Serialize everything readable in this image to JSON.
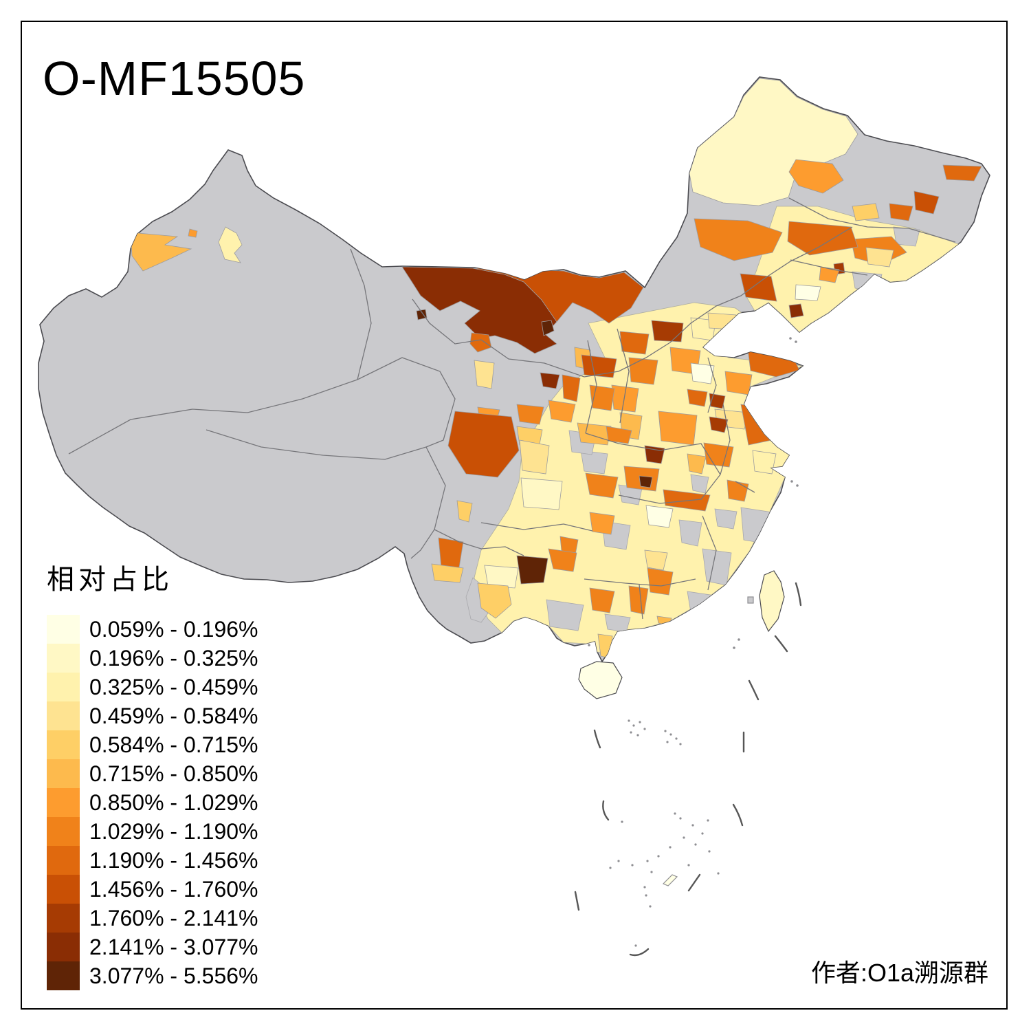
{
  "title": "O-MF15505",
  "attribution": "作者:O1a溯源群",
  "legend": {
    "title": "相对占比",
    "items": [
      {
        "label": "0.059% - 0.196%",
        "color": "#FFFFE5"
      },
      {
        "label": "0.196% - 0.325%",
        "color": "#FFF8C5"
      },
      {
        "label": "0.325% - 0.459%",
        "color": "#FFF2AD"
      },
      {
        "label": "0.459% - 0.584%",
        "color": "#FEE391"
      },
      {
        "label": "0.584% - 0.715%",
        "color": "#FECF66"
      },
      {
        "label": "0.715% - 0.850%",
        "color": "#FDBA4D"
      },
      {
        "label": "0.850% - 1.029%",
        "color": "#FD9C2F"
      },
      {
        "label": "1.029% - 1.190%",
        "color": "#F0821A"
      },
      {
        "label": "1.190% - 1.456%",
        "color": "#E0690E"
      },
      {
        "label": "1.456% - 1.760%",
        "color": "#C95005"
      },
      {
        "label": "1.760% - 2.141%",
        "color": "#A63B03"
      },
      {
        "label": "2.141% - 3.077%",
        "color": "#8A2D04"
      },
      {
        "label": "3.077% - 5.556%",
        "color": "#5F2406"
      }
    ]
  },
  "map": {
    "no_data_color": "#CACACD",
    "boundary_color": "#4B4B50",
    "province_border_color": "#76767A",
    "prefecture_border_color": "#9B9B9F",
    "dash_line_color": "#565656",
    "islet_color": "#8E8E92",
    "sea_color": "#FFFFFF"
  }
}
